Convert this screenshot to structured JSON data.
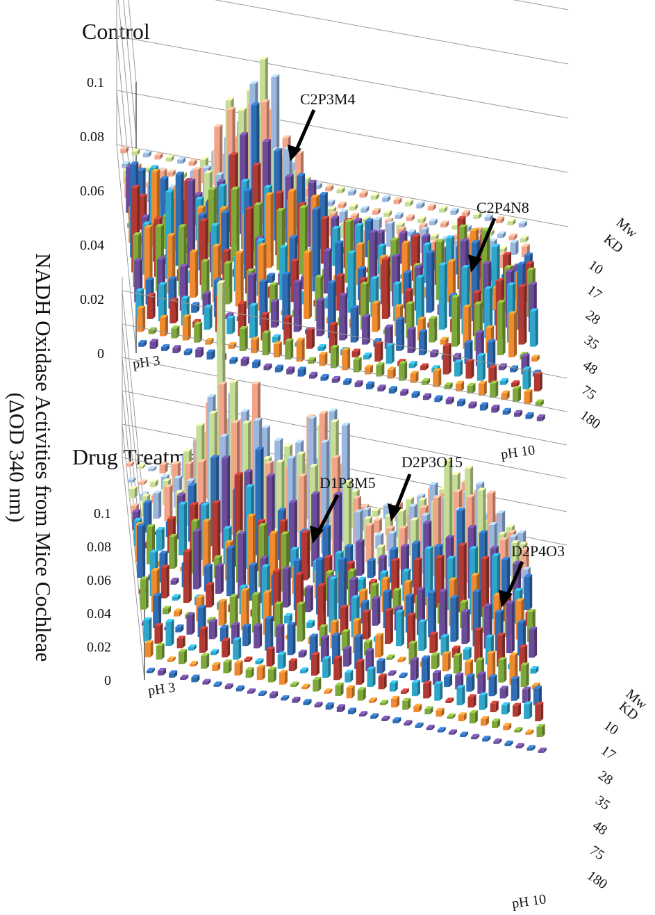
{
  "figure": {
    "ylabel_line1": "NADH Oxidase Activities from Mice Cochleae",
    "ylabel_line2": "(ΔOD 340 nm)"
  },
  "chart_data": [
    {
      "type": "bar",
      "title": "Control",
      "ylim": [
        0,
        0.1
      ],
      "yticks": [
        "0",
        "0.02",
        "0.04",
        "0.06",
        "0.08",
        "0.1"
      ],
      "x_start_label": "pH 3",
      "x_end_label": "pH 10",
      "depth_axis_label_1": "Mw",
      "depth_axis_label_2": "KD",
      "depth_ticks": [
        "10",
        "17",
        "28",
        "35",
        "48",
        "75",
        "180"
      ],
      "annotations": [
        {
          "text": "C2P3M4",
          "approx_value": 0.07
        },
        {
          "text": "C2P4N8",
          "approx_value": 0.03
        }
      ],
      "grid": "on",
      "colors": [
        "#2f6db5",
        "#b23a32",
        "#7fa83a",
        "#6b4c9a",
        "#2ea6c9",
        "#f08a2e",
        "#9ab7e0",
        "#f3a58a",
        "#c6dd95"
      ]
    },
    {
      "type": "bar",
      "title": "Drug Treatment",
      "ylim": [
        0,
        0.1
      ],
      "yticks": [
        "0",
        "0.02",
        "0.04",
        "0.06",
        "0.08",
        "0.1"
      ],
      "x_start_label": "pH 3",
      "x_end_label": "pH 10",
      "depth_axis_label_1": "Mw",
      "depth_axis_label_2": "KD",
      "depth_ticks": [
        "10",
        "17",
        "28",
        "35",
        "48",
        "75",
        "180"
      ],
      "annotations": [
        {
          "text": "D1P3M5",
          "approx_value": 0.11
        },
        {
          "text": "D2P3O15",
          "approx_value": 0.12
        },
        {
          "text": "D2P4O3",
          "approx_value": 0.09
        }
      ],
      "grid": "on",
      "colors": [
        "#2f6db5",
        "#b23a32",
        "#7fa83a",
        "#6b4c9a",
        "#2ea6c9",
        "#f08a2e",
        "#9ab7e0",
        "#f3a58a",
        "#c6dd95"
      ]
    }
  ]
}
